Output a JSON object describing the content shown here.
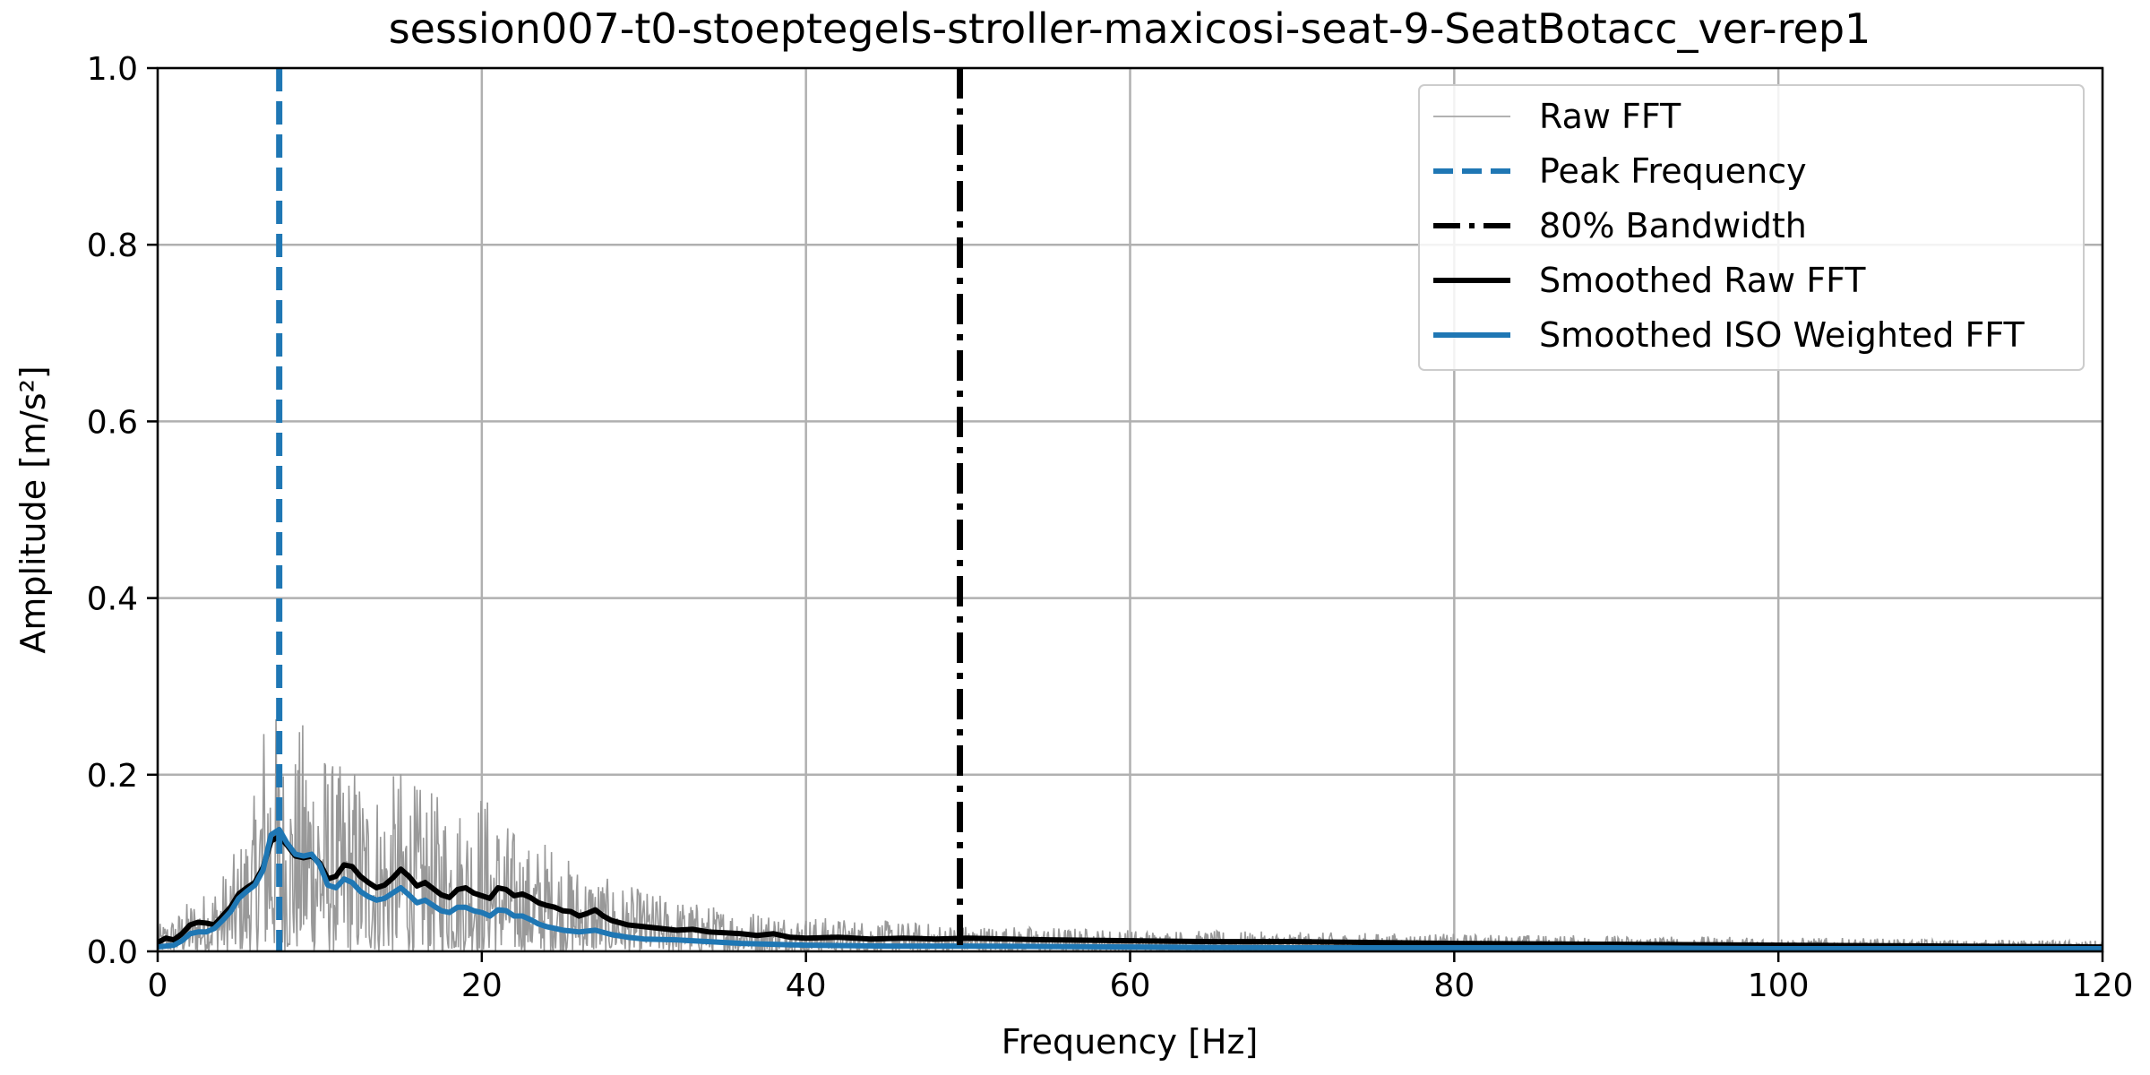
{
  "chart_data": {
    "type": "line",
    "title": "session007-t0-stoeptegels-stroller-maxicosi-seat-9-SeatBotacc_ver-rep1",
    "xlabel": "Frequency [Hz]",
    "ylabel": "Amplitude [m/s²]",
    "xlim": [
      0,
      120
    ],
    "ylim": [
      0,
      1.0
    ],
    "xticks": [
      "0",
      "20",
      "40",
      "60",
      "80",
      "100",
      "120"
    ],
    "yticks": [
      "0.0",
      "0.2",
      "0.4",
      "0.6",
      "0.8",
      "1.0"
    ],
    "grid": true,
    "legend_position": "top-right",
    "series": [
      {
        "name": "Raw FFT",
        "style": "thin-gray",
        "color": "#999999",
        "envelope": {
          "x": [
            0,
            1,
            2,
            3,
            4,
            5,
            6,
            6.5,
            7,
            7.5,
            8,
            8.5,
            9,
            10,
            11,
            12,
            13,
            14,
            15,
            16,
            17,
            18,
            19,
            20,
            21,
            22,
            23,
            24,
            25,
            26,
            27,
            28,
            30,
            32,
            35,
            38,
            40,
            45,
            50,
            55,
            60,
            70,
            80,
            90,
            100,
            110,
            120
          ],
          "y": [
            0.03,
            0.04,
            0.06,
            0.07,
            0.09,
            0.12,
            0.18,
            0.28,
            0.3,
            0.26,
            0.22,
            0.24,
            0.27,
            0.25,
            0.21,
            0.22,
            0.2,
            0.19,
            0.21,
            0.19,
            0.18,
            0.18,
            0.17,
            0.19,
            0.16,
            0.14,
            0.12,
            0.13,
            0.11,
            0.1,
            0.09,
            0.08,
            0.07,
            0.06,
            0.05,
            0.045,
            0.04,
            0.035,
            0.03,
            0.028,
            0.025,
            0.022,
            0.02,
            0.018,
            0.016,
            0.014,
            0.012
          ]
        }
      },
      {
        "name": "Peak Frequency",
        "style": "dashed-vertical",
        "color": "#1f77b4",
        "x": 7.5
      },
      {
        "name": "80% Bandwidth",
        "style": "dashdot-vertical",
        "color": "#000000",
        "x": 49.5
      },
      {
        "name": "Smoothed Raw FFT",
        "style": "thick-black",
        "color": "#000000",
        "x": [
          0,
          0.5,
          1,
          1.5,
          2,
          2.5,
          3,
          3.5,
          4,
          4.5,
          5,
          5.5,
          6,
          6.5,
          7,
          7.5,
          8,
          8.5,
          9,
          9.5,
          10,
          10.5,
          11,
          11.5,
          12,
          12.5,
          13,
          13.5,
          14,
          14.5,
          15,
          15.5,
          16,
          16.5,
          17,
          17.5,
          18,
          18.5,
          19,
          19.5,
          20,
          20.5,
          21,
          21.5,
          22,
          22.5,
          23,
          23.5,
          24,
          24.5,
          25,
          25.5,
          26,
          26.5,
          27,
          27.5,
          28,
          29,
          30,
          31,
          32,
          33,
          34,
          35,
          36,
          37,
          38,
          39,
          40,
          42,
          44,
          46,
          48,
          50,
          55,
          60,
          65,
          70,
          80,
          90,
          100,
          110,
          120
        ],
        "y": [
          0.01,
          0.015,
          0.013,
          0.02,
          0.03,
          0.033,
          0.032,
          0.03,
          0.04,
          0.05,
          0.065,
          0.072,
          0.078,
          0.095,
          0.125,
          0.13,
          0.12,
          0.108,
          0.106,
          0.108,
          0.1,
          0.082,
          0.085,
          0.098,
          0.096,
          0.085,
          0.078,
          0.072,
          0.075,
          0.083,
          0.093,
          0.085,
          0.074,
          0.078,
          0.071,
          0.064,
          0.061,
          0.07,
          0.072,
          0.066,
          0.063,
          0.06,
          0.072,
          0.07,
          0.063,
          0.065,
          0.061,
          0.055,
          0.052,
          0.05,
          0.046,
          0.045,
          0.04,
          0.043,
          0.047,
          0.04,
          0.035,
          0.03,
          0.028,
          0.026,
          0.024,
          0.025,
          0.022,
          0.021,
          0.02,
          0.018,
          0.02,
          0.016,
          0.015,
          0.016,
          0.014,
          0.015,
          0.014,
          0.015,
          0.013,
          0.012,
          0.011,
          0.011,
          0.009,
          0.008,
          0.007,
          0.006,
          0.005
        ]
      },
      {
        "name": "Smoothed ISO Weighted FFT",
        "style": "thick-blue",
        "color": "#1f77b4",
        "x": [
          0,
          0.5,
          1,
          1.5,
          2,
          2.5,
          3,
          3.5,
          4,
          4.5,
          5,
          5.5,
          6,
          6.5,
          7,
          7.5,
          8,
          8.5,
          9,
          9.5,
          10,
          10.5,
          11,
          11.5,
          12,
          12.5,
          13,
          13.5,
          14,
          14.5,
          15,
          15.5,
          16,
          16.5,
          17,
          17.5,
          18,
          18.5,
          19,
          19.5,
          20,
          20.5,
          21,
          21.5,
          22,
          22.5,
          23,
          23.5,
          24,
          24.5,
          25,
          26,
          27,
          28,
          29,
          30,
          32,
          34,
          36,
          38,
          40,
          45,
          50,
          60,
          70,
          80,
          90,
          100,
          110,
          120
        ],
        "y": [
          0.005,
          0.006,
          0.007,
          0.012,
          0.02,
          0.022,
          0.022,
          0.026,
          0.035,
          0.045,
          0.06,
          0.068,
          0.075,
          0.092,
          0.132,
          0.138,
          0.122,
          0.11,
          0.108,
          0.11,
          0.098,
          0.075,
          0.072,
          0.082,
          0.078,
          0.068,
          0.062,
          0.058,
          0.06,
          0.066,
          0.072,
          0.064,
          0.055,
          0.058,
          0.052,
          0.046,
          0.044,
          0.05,
          0.05,
          0.046,
          0.044,
          0.04,
          0.047,
          0.046,
          0.04,
          0.04,
          0.036,
          0.031,
          0.028,
          0.026,
          0.024,
          0.022,
          0.024,
          0.019,
          0.016,
          0.014,
          0.013,
          0.011,
          0.009,
          0.008,
          0.007,
          0.006,
          0.006,
          0.005,
          0.004,
          0.004,
          0.004,
          0.003,
          0.003,
          0.003
        ]
      }
    ]
  }
}
